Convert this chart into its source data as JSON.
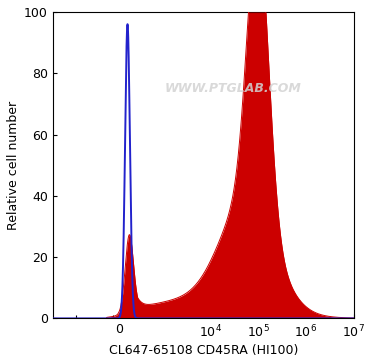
{
  "xlabel": "CL647-65108 CD45RA (HI100)",
  "ylabel": "Relative cell number",
  "ylim": [
    0,
    100
  ],
  "yticks": [
    0,
    20,
    40,
    60,
    80,
    100
  ],
  "background_color": "#ffffff",
  "watermark": "WWW.PTGLAB.COM",
  "blue_color": "#2222cc",
  "red_color": "#cc0000",
  "fig_width": 3.72,
  "fig_height": 3.64,
  "dpi": 100,
  "symlog_linthresh": 300,
  "symlog_linscale": 0.35
}
